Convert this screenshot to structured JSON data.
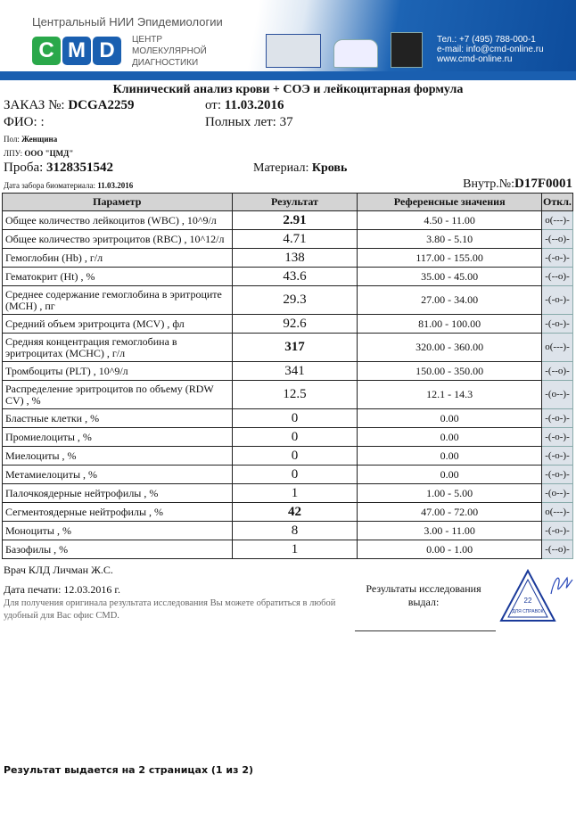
{
  "header": {
    "institute": "Центральный НИИ Эпидемиологии",
    "logo_letters": [
      "C",
      "M",
      "D"
    ],
    "logo_colors": [
      "#2aa84a",
      "#1a5fb0",
      "#1a5fb0"
    ],
    "center_lines": [
      "ЦЕНТР",
      "МОЛЕКУЛЯРНОЙ",
      "ДИАГНОСТИКИ"
    ],
    "phone": "Тел.: +7 (495) 788-000-1",
    "email": "e-mail: info@cmd-online.ru",
    "site": "www.cmd-online.ru"
  },
  "doc": {
    "title": "Клинический анализ крови + СОЭ и лейкоцитарная формула",
    "order_label": "ЗАКАЗ №:",
    "order_value": "DCGA2259",
    "date_label": "от:",
    "date_value": "11.03.2016",
    "fio_label": "ФИО:",
    "fio_value": ":",
    "age_label": "Полных лет:",
    "age_value": "37",
    "sex_label": "Пол:",
    "sex_value": "Женщина",
    "lpu_label": "ЛПУ:",
    "lpu_value": "ООО \"ЦМД\"",
    "sample_label": "Проба:",
    "sample_value": "3128351542",
    "material_label": "Материал:",
    "material_value": "Кровь",
    "collect_label": "Дата забора биоматериала:",
    "collect_value": "11.03.2016",
    "internal_label": "Внутр.№:",
    "internal_value": "D17F0001"
  },
  "table": {
    "headers": [
      "Параметр",
      "Результат",
      "Референсные значения",
      "Откл."
    ],
    "rows": [
      {
        "param": "Общее количество лейкоцитов (WBC) , 10^9/л",
        "result": "2.91",
        "ref": "4.50 - 11.00",
        "dev": "o(---)-",
        "abnormal": true
      },
      {
        "param": "Общее количество эритроцитов (RBC) , 10^12/л",
        "result": "4.71",
        "ref": "3.80 - 5.10",
        "dev": "-(--o)-"
      },
      {
        "param": "Гемоглобин (Hb) , г/л",
        "result": "138",
        "ref": "117.00 - 155.00",
        "dev": "-(-o-)-"
      },
      {
        "param": "Гематокрит (Ht) , %",
        "result": "43.6",
        "ref": "35.00 - 45.00",
        "dev": "-(--o)-"
      },
      {
        "param": "Среднее содержание гемоглобина в эритроците (MCH) , пг",
        "result": "29.3",
        "ref": "27.00 - 34.00",
        "dev": "-(-o-)-",
        "tall": true
      },
      {
        "param": "Средний объем эритроцита (MCV) , фл",
        "result": "92.6",
        "ref": "81.00 - 100.00",
        "dev": "-(-o-)-"
      },
      {
        "param": "Средняя концентрация гемоглобина в эритроцитах (MCHC) , г/л",
        "result": "317",
        "ref": "320.00 - 360.00",
        "dev": "o(---)-",
        "abnormal": true,
        "tall": true
      },
      {
        "param": "Тромбоциты (PLT) , 10^9/л",
        "result": "341",
        "ref": "150.00 - 350.00",
        "dev": "-(--o)-"
      },
      {
        "param": "Распределение эритроцитов по объему (RDW CV) , %",
        "result": "12.5",
        "ref": "12.1 - 14.3",
        "dev": "-(o--)-",
        "tall": true
      },
      {
        "param": "Бластные клетки , %",
        "result": "0",
        "ref": "0.00",
        "dev": "-(-o-)-"
      },
      {
        "param": "Промиелоциты , %",
        "result": "0",
        "ref": "0.00",
        "dev": "-(-o-)-"
      },
      {
        "param": "Миелоциты , %",
        "result": "0",
        "ref": "0.00",
        "dev": "-(-o-)-"
      },
      {
        "param": "Метамиелоциты , %",
        "result": "0",
        "ref": "0.00",
        "dev": "-(-o-)-"
      },
      {
        "param": "Палочкоядерные нейтрофилы , %",
        "result": "1",
        "ref": "1.00 - 5.00",
        "dev": "-(o--)-"
      },
      {
        "param": "Сегментоядерные нейтрофилы , %",
        "result": "42",
        "ref": "47.00 - 72.00",
        "dev": "o(---)-",
        "abnormal": true
      },
      {
        "param": "Моноциты , %",
        "result": "8",
        "ref": "3.00 - 11.00",
        "dev": "-(-o-)-"
      },
      {
        "param": "Базофилы , %",
        "result": "1",
        "ref": "0.00 - 1.00",
        "dev": "-(--o)-"
      }
    ]
  },
  "footer": {
    "doctor": "Врач КЛД Личман Ж.С.",
    "print_date": "Дата печати: 12.03.2016 г.",
    "note_line1": "Для получения оригинала результата исследования Вы можете обратиться в любой",
    "note_line2": "удобный для Вас офис CMD.",
    "issued_line1": "Результаты исследования",
    "issued_line2": "выдал:",
    "stamp_text": "22 ДЛЯ СПРАВОК",
    "pages": "Результат выдается на 2 страницах (1 из 2)"
  }
}
